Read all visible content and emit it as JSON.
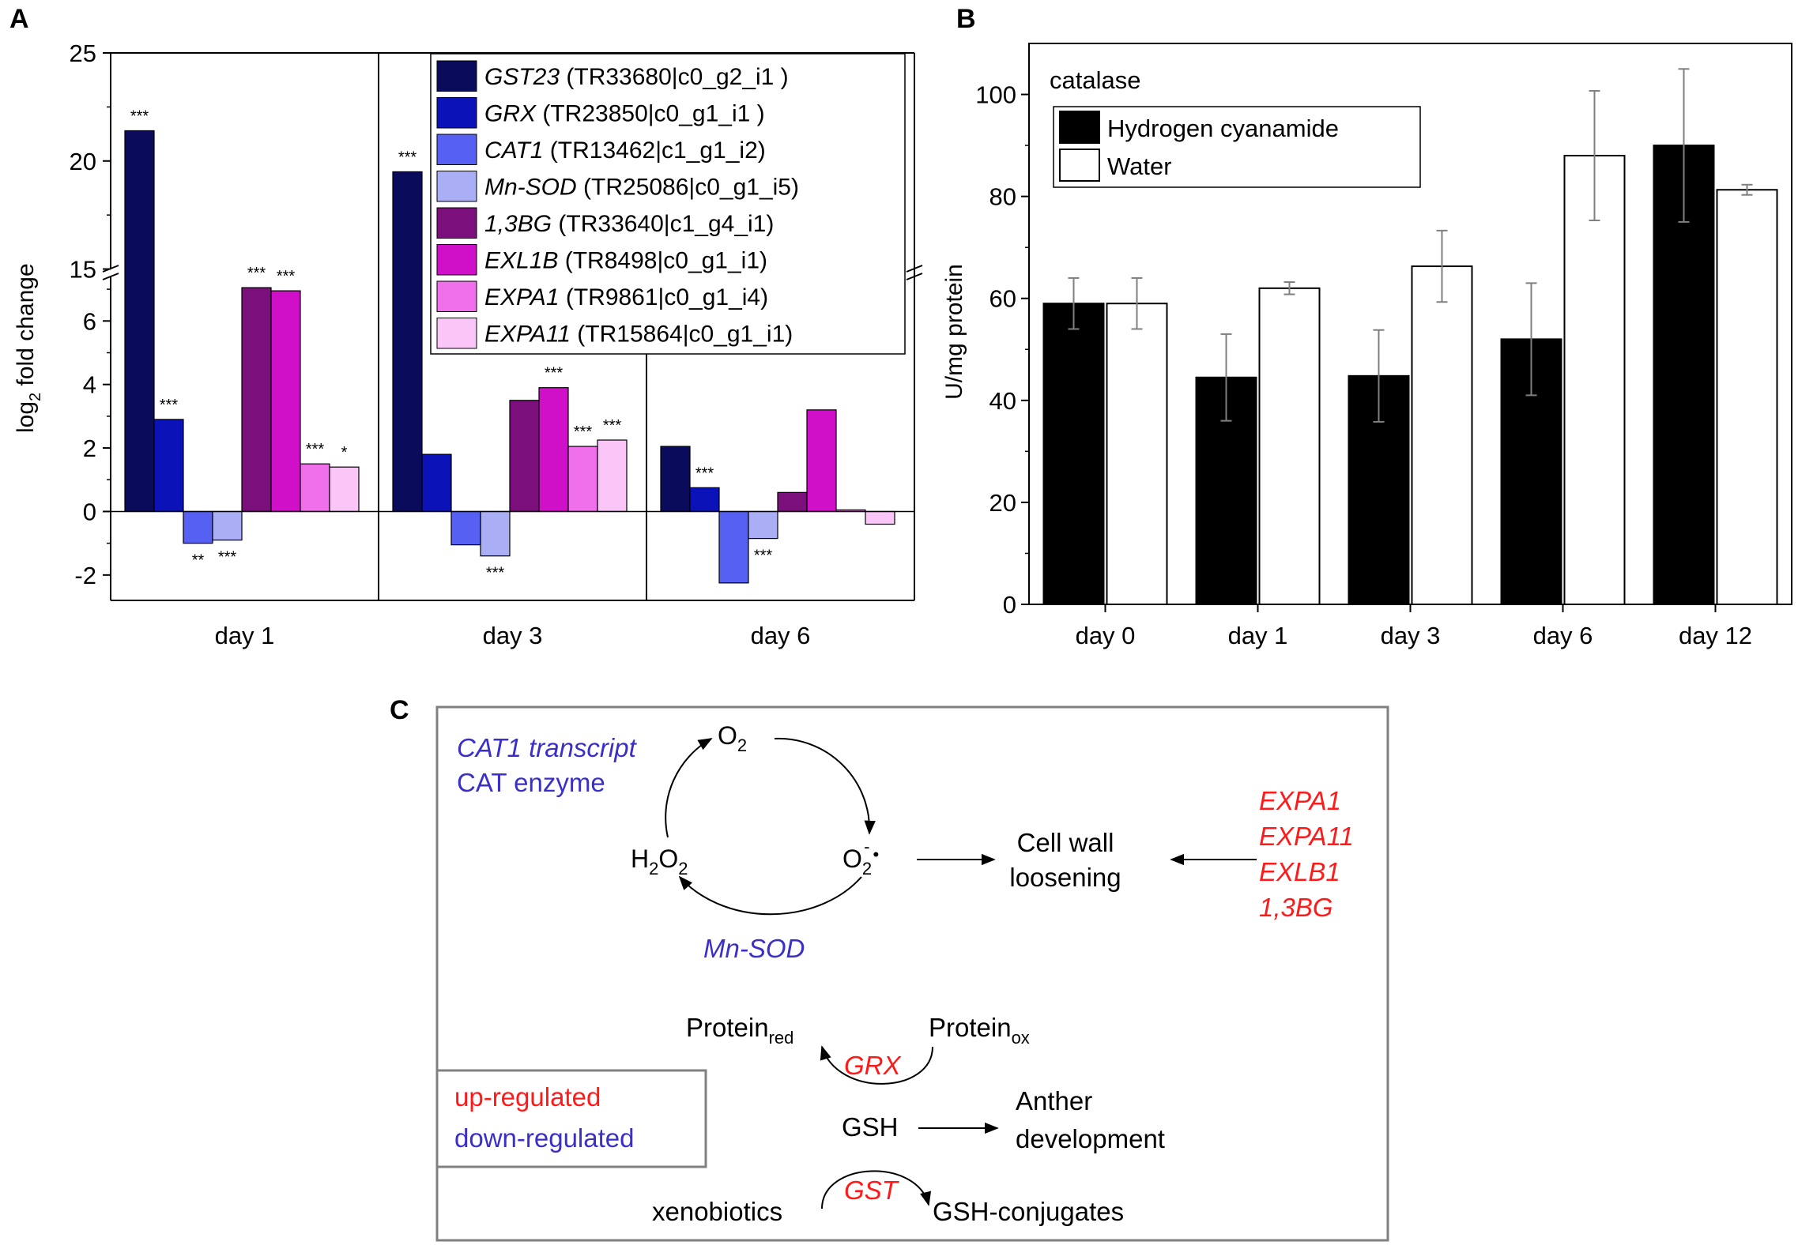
{
  "panel_labels": {
    "a": "A",
    "b": "B",
    "c": "C"
  },
  "chart_data": [
    {
      "type": "bar",
      "panel": "A",
      "ylabel_main": "log",
      "ylabel_sub": "2",
      "ylabel_rest": " fold change",
      "categories": [
        "day 1",
        "day 3",
        "day 6"
      ],
      "ylim_lower": [
        -2.8,
        7.5
      ],
      "ylim_upper": [
        14.8,
        25
      ],
      "yticks_lower": [
        "-2",
        "0",
        "2",
        "4",
        "6"
      ],
      "yticks_upper": [
        "15",
        "20",
        "25"
      ],
      "series": [
        {
          "italic": "GST23",
          "rest": " (TR33680|c0_g2_i1 )",
          "color": "#0b0b5c",
          "values": [
            21.4,
            19.5,
            2.05
          ],
          "sig": [
            "***",
            "***",
            ""
          ]
        },
        {
          "italic": "GRX",
          "rest": " (TR23850|c0_g1_i1 )",
          "color": "#0a12b8",
          "values": [
            2.9,
            1.8,
            0.75
          ],
          "sig": [
            "***",
            "",
            "***"
          ]
        },
        {
          "italic": "CAT1",
          "rest": " (TR13462|c1_g1_i2)",
          "color": "#5660f2",
          "values": [
            -1.0,
            -1.05,
            -2.25
          ],
          "sig": [
            "**",
            "",
            ""
          ]
        },
        {
          "italic": "Mn-SOD",
          "rest": " (TR25086|c0_g1_i5)",
          "color": "#a9aef5",
          "values": [
            -0.9,
            -1.4,
            -0.85
          ],
          "sig": [
            "***",
            "***",
            "***"
          ]
        },
        {
          "italic": "1,3BG",
          "rest": " (TR33640|c1_g4_i1)",
          "color": "#7b0f7b",
          "values": [
            7.05,
            3.5,
            0.6
          ],
          "sig": [
            "***",
            "",
            ""
          ]
        },
        {
          "italic": "EXL1B",
          "rest": " (TR8498|c0_g1_i1)",
          "color": "#d010c8",
          "values": [
            6.95,
            3.9,
            3.2
          ],
          "sig": [
            "***",
            "***",
            ""
          ]
        },
        {
          "italic": "EXPA1",
          "rest": " (TR9861|c0_g1_i4)",
          "color": "#f070ec",
          "values": [
            1.5,
            2.05,
            0.05
          ],
          "sig": [
            "***",
            "***",
            ""
          ]
        },
        {
          "italic": "EXPA11",
          "rest": " (TR15864|c0_g1_i1)",
          "color": "#f9c6f7",
          "values": [
            1.4,
            2.25,
            -0.4
          ],
          "sig": [
            "*",
            "***",
            ""
          ]
        }
      ]
    },
    {
      "type": "bar",
      "panel": "B",
      "title": "catalase",
      "ylabel": "U/mg protein",
      "categories": [
        "day 0",
        "day 1",
        "day 3",
        "day 6",
        "day 12"
      ],
      "ylim": [
        0,
        110
      ],
      "yticks": [
        "0",
        "20",
        "40",
        "60",
        "80",
        "100"
      ],
      "series": [
        {
          "name": "Hydrogen cyanamide",
          "color": "#000000",
          "values": [
            59,
            44.5,
            44.8,
            52,
            90
          ],
          "errors": [
            5,
            8.5,
            9,
            11,
            15
          ]
        },
        {
          "name": "Water",
          "color": "#ffffff",
          "values": [
            59,
            62,
            66.3,
            88,
            81.3
          ],
          "errors": [
            5,
            1.2,
            7,
            12.7,
            1
          ]
        }
      ]
    }
  ],
  "diagram": {
    "cat1_transcript": "CAT1 transcript",
    "cat_enzyme": "CAT enzyme",
    "o2": "O",
    "o2_sub": "2",
    "superoxide": "O",
    "superoxide_sub": "2",
    "superoxide_sup": "-",
    "superoxide_dot": "•",
    "h2o2_h": "H",
    "h2o2_sub1": "2",
    "h2o2_o": "O",
    "h2o2_sub2": "2",
    "mn_sod": "Mn-SOD",
    "cell_wall_1": "Cell wall",
    "cell_wall_2": "loosening",
    "genes_red": [
      "EXPA1",
      "EXPA11",
      "EXLB1",
      "1,3BG"
    ],
    "protein_red": "Protein",
    "protein_red_sub": "red",
    "protein_ox": "Protein",
    "protein_ox_sub": "ox",
    "grx": "GRX",
    "gsh": "GSH",
    "anther_1": "Anther",
    "anther_2": "development",
    "xenobiotics": "xenobiotics",
    "gst": "GST",
    "gsh_conjugates": "GSH-conjugates",
    "legend_up": "up-regulated",
    "legend_down": "down-regulated",
    "color_red": "#ff1a1a",
    "color_blue": "#3a2fc8"
  }
}
